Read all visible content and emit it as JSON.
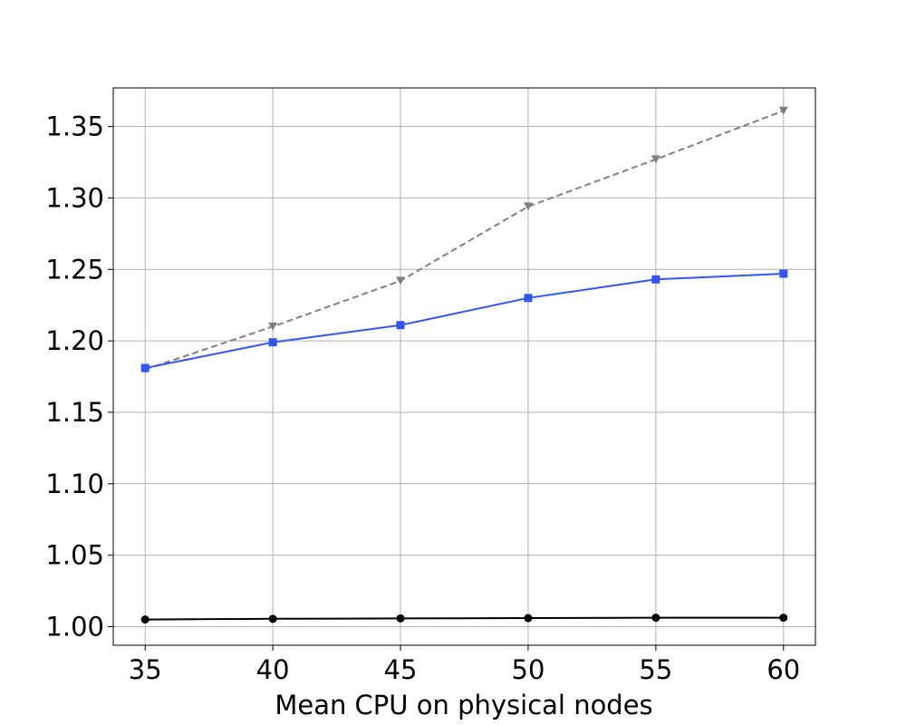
{
  "chart_data": {
    "type": "line",
    "title": "",
    "xlabel": "Mean CPU on physical nodes",
    "ylabel": "",
    "xlim": [
      33.75,
      61.25
    ],
    "ylim": [
      0.987,
      1.377
    ],
    "xticks": [
      35,
      40,
      45,
      50,
      55,
      60
    ],
    "xtick_labels": [
      "35",
      "40",
      "45",
      "50",
      "55",
      "60"
    ],
    "yticks": [
      1.0,
      1.05,
      1.1,
      1.15,
      1.2,
      1.25,
      1.3,
      1.35
    ],
    "ytick_labels": [
      "1.00",
      "1.05",
      "1.10",
      "1.15",
      "1.20",
      "1.25",
      "1.30",
      "1.35"
    ],
    "grid": true,
    "legend": "none",
    "x": [
      35,
      40,
      45,
      50,
      55,
      60
    ],
    "series": [
      {
        "values": [
          1.18,
          1.21,
          1.242,
          1.294,
          1.327,
          1.361
        ],
        "color": "#808080",
        "line_style": "dashed",
        "marker": "triangle-down"
      },
      {
        "values": [
          1.181,
          1.199,
          1.211,
          1.23,
          1.243,
          1.247
        ],
        "color": "#3355ee",
        "line_style": "solid",
        "marker": "square"
      },
      {
        "values": [
          1.005,
          1.0055,
          1.0058,
          1.006,
          1.0063,
          1.0063
        ],
        "color": "#000000",
        "line_style": "solid",
        "marker": "circle"
      }
    ]
  }
}
